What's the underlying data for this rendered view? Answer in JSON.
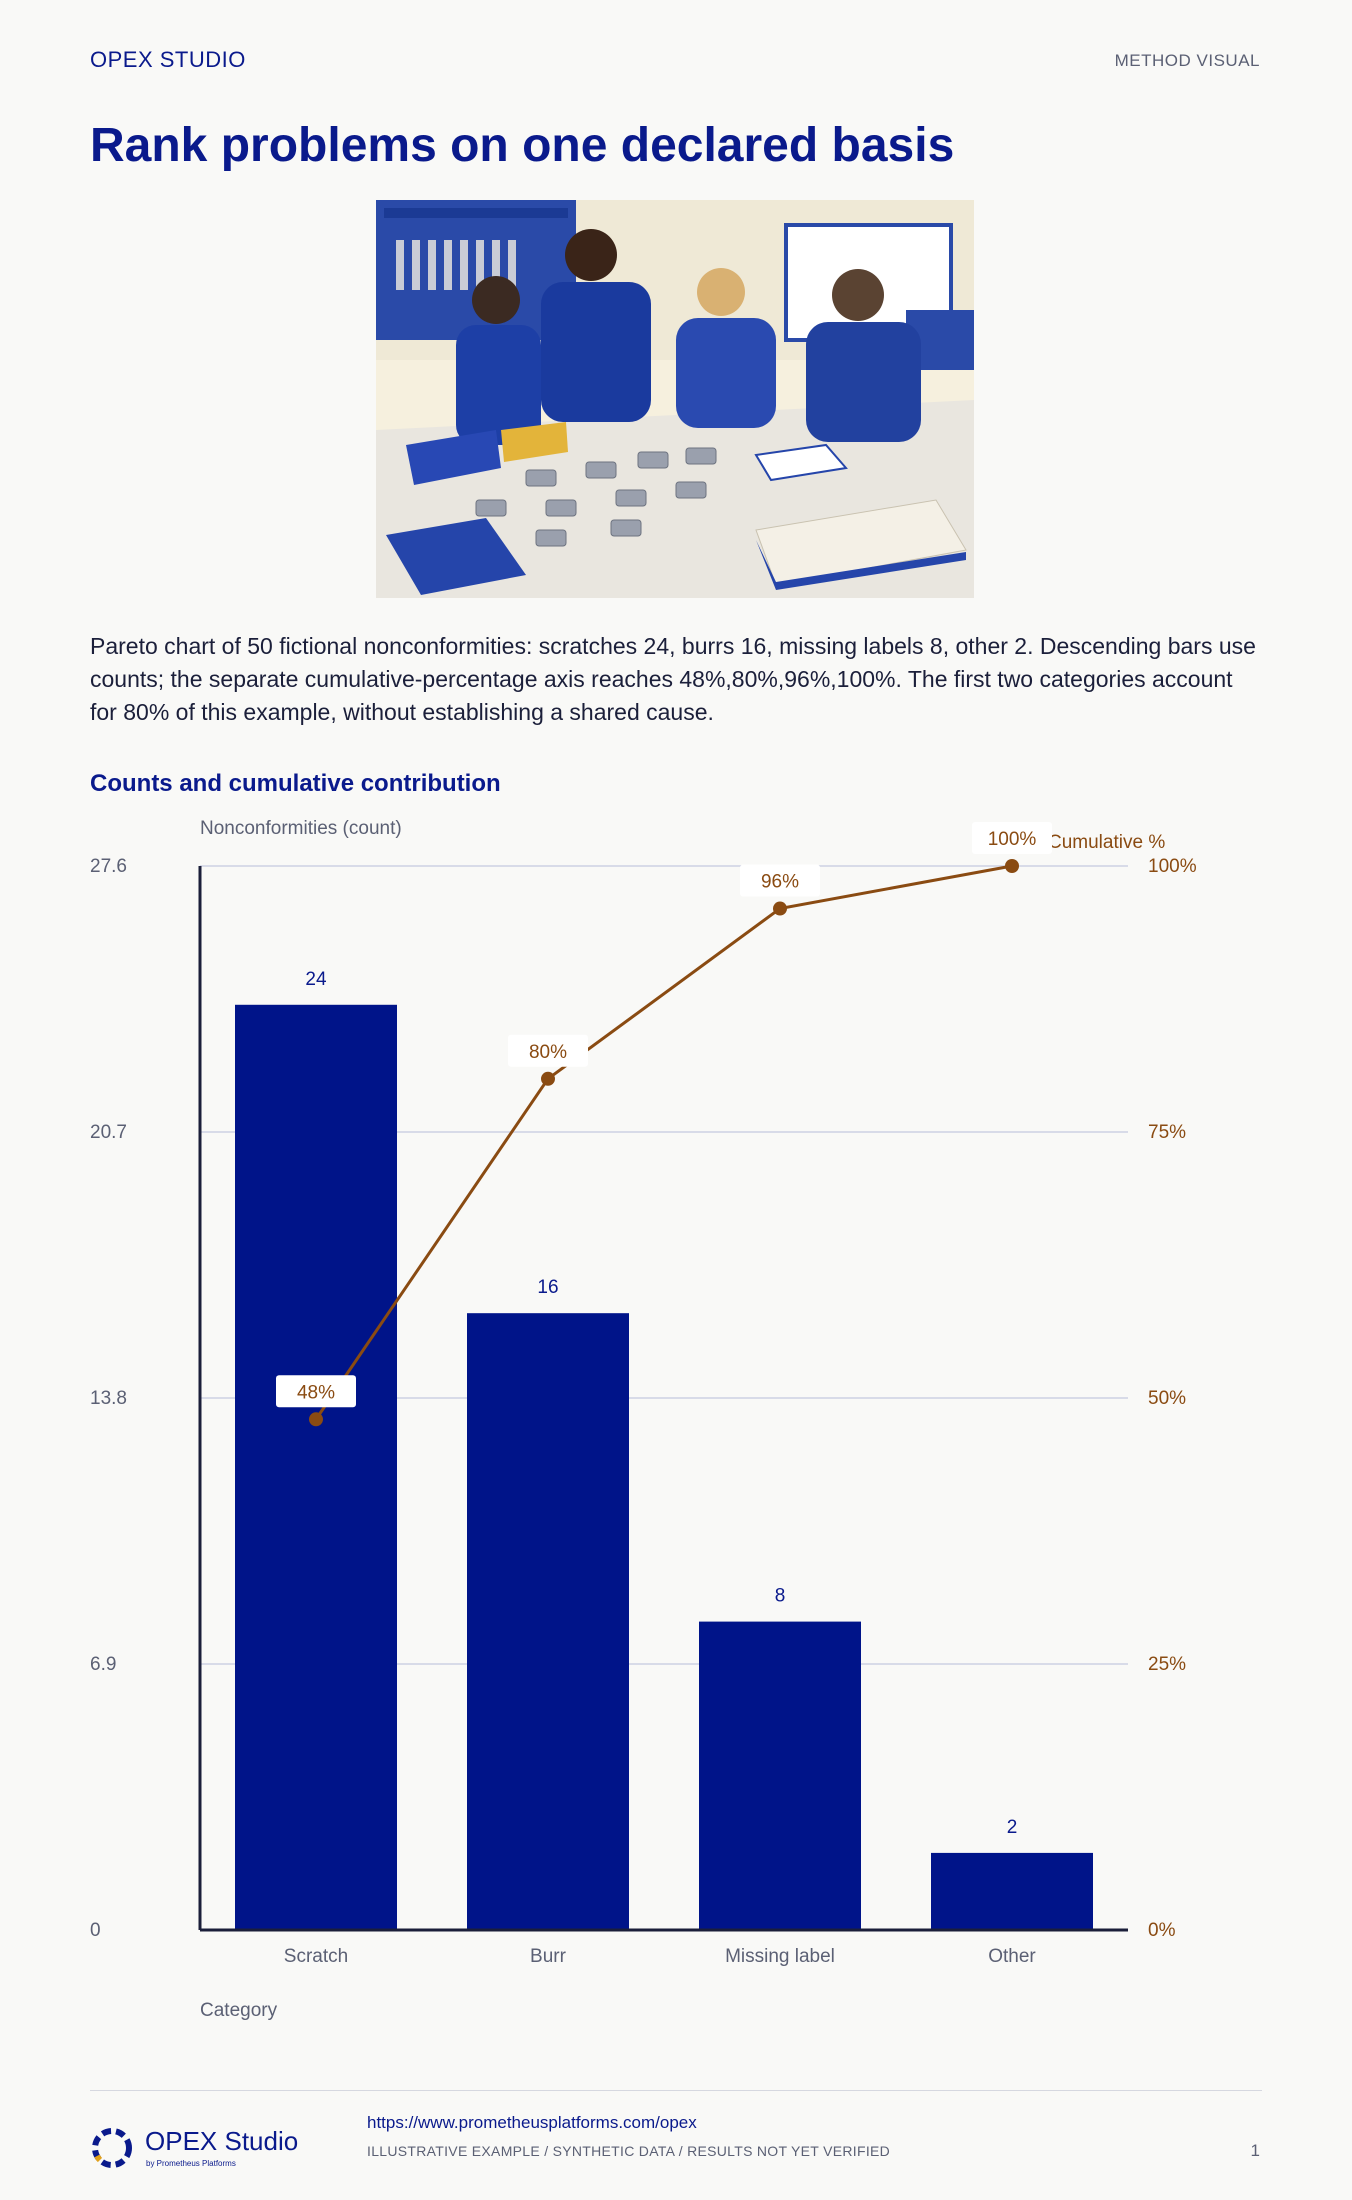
{
  "header": {
    "brand": "OPEX STUDIO",
    "tag": "METHOD VISUAL"
  },
  "title": "Rank problems on one declared basis",
  "photo": {
    "icon": "team-inspecting-parts-illustration"
  },
  "caption": "Pareto chart of 50 fictional nonconformities: scratches 24, burrs 16, missing labels 8, other 2. Descending bars use counts; the separate cumulative-percentage axis reaches 48%,80%,96%,100%. The first two categories account for 80% of this example, without establishing a shared cause.",
  "section_title": "Counts and cumulative contribution",
  "chart_data": {
    "type": "bar",
    "categories": [
      "Scratch",
      "Burr",
      "Missing label",
      "Other"
    ],
    "series": [
      {
        "values": [
          24,
          16,
          8,
          2
        ]
      }
    ],
    "cumulative": {
      "name": "Cumulative %",
      "values": [
        48,
        80,
        96,
        100
      ],
      "labels": [
        "48%",
        "80%",
        "96%",
        "100%"
      ]
    },
    "bar_labels": [
      "24",
      "16",
      "8",
      "2"
    ],
    "ylabel": "Nonconformities (count)",
    "y2label": "Cumulative %",
    "xlabel": "Category",
    "ylim": [
      0,
      27.6
    ],
    "yticks": [
      "0",
      "6.9",
      "13.8",
      "20.7",
      "27.6"
    ],
    "y2lim": [
      0,
      100
    ],
    "y2ticks": [
      "0%",
      "25%",
      "50%",
      "75%",
      "100%"
    ],
    "grid": true,
    "colors": {
      "bars": "#001489",
      "line": "#8a4b12",
      "grid": "#d8dbe8"
    }
  },
  "footer": {
    "brand": "OPEX Studio",
    "sub": "by Prometheus Platforms",
    "url": "https://www.prometheusplatforms.com/opex",
    "note": "ILLUSTRATIVE EXAMPLE / SYNTHETIC DATA / RESULTS NOT YET VERIFIED",
    "page": "1"
  }
}
